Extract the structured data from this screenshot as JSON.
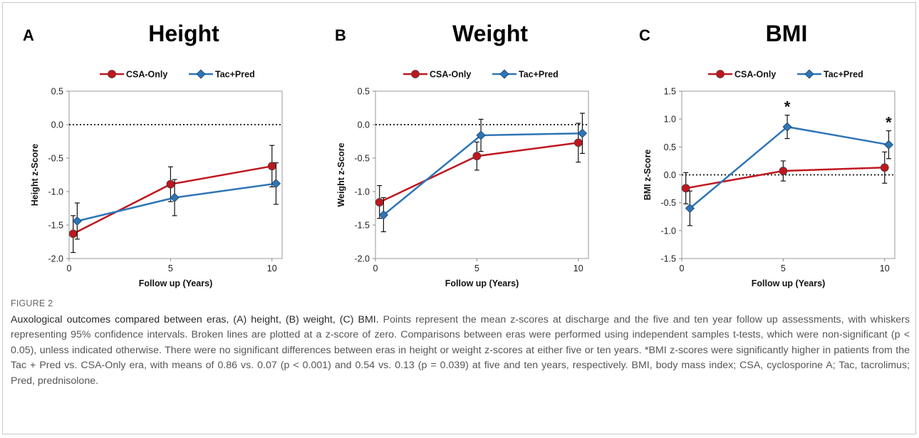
{
  "figure": {
    "label": "FIGURE 2",
    "caption_title": "Auxological outcomes compared between eras, (A) height, (B) weight, (C) BMI.",
    "caption_body": " Points represent the mean z-scores at discharge and the five and ten year follow up assessments, with whiskers representing 95% confidence intervals. Broken lines are plotted at a z-score of zero. Comparisons between eras were performed using independent samples t-tests, which were non-significant (p < 0.05), unless indicated otherwise. There were no significant differences between eras in height or weight z-scores at either five or ten years. *BMI z-scores were significantly higher in patients from the Tac + Pred vs. CSA-Only era, with means of 0.86 vs. 0.07 (p < 0.001) and 0.54 vs. 0.13 (p = 0.039) at five and ten years, respectively. BMI, body mass index; CSA, cyclosporine A; Tac, tacrolimus; Pred, prednisolone."
  },
  "colors": {
    "csa": "#c0161e",
    "tac": "#2e75b6"
  },
  "chart_data": [
    {
      "type": "line",
      "panel": "A",
      "title": "Height",
      "xlabel": "Follow up (Years)",
      "ylabel": "Height z-Score",
      "xlim": [
        0,
        10.5
      ],
      "ylim": [
        -2.0,
        0.5
      ],
      "xticks": [
        0,
        5,
        10
      ],
      "yticks": [
        0.5,
        0.0,
        -0.5,
        -1.0,
        -1.5,
        -2.0
      ],
      "ytick_labels": [
        "0.5",
        "0.0",
        "-0.5",
        "-1.0",
        "-1.5",
        "-2.0"
      ],
      "reference_line": 0,
      "legend": "top",
      "series": [
        {
          "name": "CSA-Only",
          "marker": "circle",
          "x": [
            0.2,
            5,
            10
          ],
          "y": [
            -1.63,
            -0.89,
            -0.62
          ],
          "err_low": [
            -1.91,
            -1.15,
            -0.93
          ],
          "err_high": [
            -1.36,
            -0.63,
            -0.31
          ],
          "stars": [
            false,
            false,
            false
          ]
        },
        {
          "name": "Tac+Pred",
          "marker": "diamond",
          "x": [
            0.4,
            5.2,
            10.2
          ],
          "y": [
            -1.44,
            -1.09,
            -0.88
          ],
          "err_low": [
            -1.71,
            -1.36,
            -1.19
          ],
          "err_high": [
            -1.17,
            -0.82,
            -0.57
          ],
          "stars": [
            false,
            false,
            false
          ]
        }
      ]
    },
    {
      "type": "line",
      "panel": "B",
      "title": "Weight",
      "xlabel": "Follow up (Years)",
      "ylabel": "Weight z-Score",
      "xlim": [
        0,
        10.5
      ],
      "ylim": [
        -2.0,
        0.5
      ],
      "xticks": [
        0,
        5,
        10
      ],
      "yticks": [
        0.5,
        0.0,
        -0.5,
        -1.0,
        -1.5,
        -2.0
      ],
      "ytick_labels": [
        "0.5",
        "0.0",
        "-0.5",
        "-1.0",
        "-1.5",
        "-2.0"
      ],
      "reference_line": 0,
      "legend": "top",
      "series": [
        {
          "name": "CSA-Only",
          "marker": "circle",
          "x": [
            0.2,
            5,
            10
          ],
          "y": [
            -1.16,
            -0.47,
            -0.27
          ],
          "err_low": [
            -1.4,
            -0.68,
            -0.56
          ],
          "err_high": [
            -0.91,
            -0.26,
            0.02
          ],
          "stars": [
            false,
            false,
            false
          ]
        },
        {
          "name": "Tac+Pred",
          "marker": "diamond",
          "x": [
            0.4,
            5.2,
            10.2
          ],
          "y": [
            -1.35,
            -0.16,
            -0.13
          ],
          "err_low": [
            -1.6,
            -0.4,
            -0.43
          ],
          "err_high": [
            -1.09,
            0.08,
            0.17
          ],
          "stars": [
            false,
            false,
            false
          ]
        }
      ]
    },
    {
      "type": "line",
      "panel": "C",
      "title": "BMI",
      "xlabel": "Follow up (Years)",
      "ylabel": "BMI z-Score",
      "xlim": [
        0,
        10.5
      ],
      "ylim": [
        -1.5,
        1.5
      ],
      "xticks": [
        0,
        5,
        10
      ],
      "yticks": [
        1.5,
        1.0,
        0.5,
        0.0,
        -0.5,
        -1.0,
        -1.5
      ],
      "ytick_labels": [
        "1.5",
        "1.0",
        "0.5",
        "0.0",
        "-0.5",
        "-1.0",
        "-1.5"
      ],
      "reference_line": 0,
      "legend": "top",
      "series": [
        {
          "name": "CSA-Only",
          "marker": "circle",
          "x": [
            0.2,
            5,
            10
          ],
          "y": [
            -0.24,
            0.07,
            0.13
          ],
          "err_low": [
            -0.52,
            -0.11,
            -0.15
          ],
          "err_high": [
            0.04,
            0.25,
            0.41
          ],
          "stars": [
            false,
            false,
            false
          ]
        },
        {
          "name": "Tac+Pred",
          "marker": "diamond",
          "x": [
            0.4,
            5.2,
            10.2
          ],
          "y": [
            -0.6,
            0.86,
            0.54
          ],
          "err_low": [
            -0.91,
            0.65,
            0.29
          ],
          "err_high": [
            -0.29,
            1.07,
            0.79
          ],
          "stars": [
            false,
            true,
            true
          ]
        }
      ]
    }
  ]
}
